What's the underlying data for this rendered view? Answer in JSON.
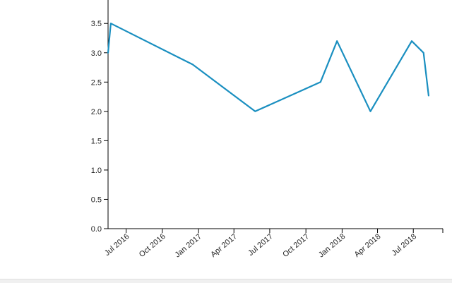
{
  "chart_data": {
    "type": "line",
    "xlabel": "",
    "ylabel": "",
    "x_axis": {
      "type": "date",
      "range": [
        "2016-05-16",
        "2018-09-14"
      ],
      "ticks": [
        {
          "date": "2016-07-01",
          "label": "Jul 2016"
        },
        {
          "date": "2016-10-01",
          "label": "Oct 2016"
        },
        {
          "date": "2017-01-01",
          "label": "Jan 2017"
        },
        {
          "date": "2017-04-01",
          "label": "Apr 2017"
        },
        {
          "date": "2017-07-01",
          "label": "Jul 2017"
        },
        {
          "date": "2017-10-01",
          "label": "Oct 2017"
        },
        {
          "date": "2018-01-01",
          "label": "Jan 2018"
        },
        {
          "date": "2018-04-01",
          "label": "Apr 2018"
        },
        {
          "date": "2018-07-01",
          "label": "Jul 2018"
        }
      ]
    },
    "y_axis": {
      "range": [
        0,
        3.9
      ],
      "ticks": [
        "0.0",
        "0.5",
        "1.0",
        "1.5",
        "2.0",
        "2.5",
        "3.0",
        "3.5"
      ]
    },
    "grid": false,
    "series": [
      {
        "color": "#1a8fc0",
        "points": [
          {
            "x": "2016-05-16",
            "y": 3.0
          },
          {
            "x": "2016-05-23",
            "y": 3.5
          },
          {
            "x": "2016-12-17",
            "y": 2.8
          },
          {
            "x": "2017-05-25",
            "y": 2.0
          },
          {
            "x": "2017-11-07",
            "y": 2.5
          },
          {
            "x": "2017-12-19",
            "y": 3.2
          },
          {
            "x": "2018-03-14",
            "y": 2.0
          },
          {
            "x": "2018-06-27",
            "y": 3.2
          },
          {
            "x": "2018-07-27",
            "y": 3.0
          },
          {
            "x": "2018-08-09",
            "y": 2.27
          }
        ]
      }
    ]
  }
}
